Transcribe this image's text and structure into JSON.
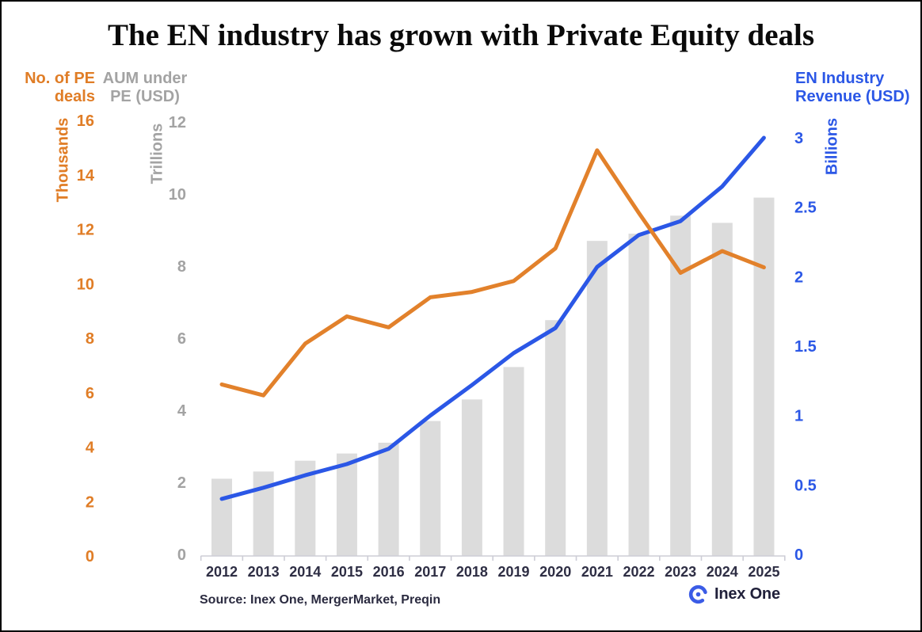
{
  "title": "The EN industry has grown with Private Equity deals",
  "source_note": "Source: Inex One, MergerMarket, Preqin",
  "logo": {
    "text": "Inex One",
    "icon": "inex-one-ring-logo",
    "color": "#3B5CE6"
  },
  "chart_data": {
    "type": "combo",
    "subtype": "bar+line, dual left axes and right axis",
    "x": [
      2012,
      2013,
      2014,
      2015,
      2016,
      2017,
      2018,
      2019,
      2020,
      2021,
      2022,
      2023,
      2024,
      2025
    ],
    "grid": false,
    "legend_position": "axis headers top-left and top-right",
    "axes": {
      "pe_deals": {
        "header": [
          "No. of PE",
          "deals"
        ],
        "unit": "Thousands",
        "side": "left-outer",
        "ticks": [
          0,
          2,
          4,
          6,
          8,
          10,
          12,
          14,
          16
        ],
        "ylim": [
          0,
          16
        ],
        "color": "#E07D26"
      },
      "aum": {
        "header": [
          "AUM under",
          "PE (USD)"
        ],
        "unit": "Trillions",
        "side": "left-inner",
        "ticks": [
          0,
          2,
          4,
          6,
          8,
          10,
          12
        ],
        "ylim": [
          0,
          12
        ],
        "color": "#A3A3A3"
      },
      "revenue": {
        "header": [
          "EN Industry",
          "Revenue (USD)"
        ],
        "unit": "Billions",
        "side": "right",
        "ticks": [
          0,
          0.5,
          1,
          1.5,
          2,
          2.5,
          3
        ],
        "ylim": [
          0,
          3
        ],
        "color": "#2B57E6"
      }
    },
    "series": [
      {
        "name": "AUM under PE (USD)",
        "type": "bar",
        "axis": "aum",
        "color": "#DCDCDC",
        "values": [
          2.1,
          2.3,
          2.6,
          2.8,
          3.1,
          3.7,
          4.3,
          5.2,
          6.5,
          8.7,
          8.9,
          9.4,
          9.2,
          9.9
        ]
      },
      {
        "name": "EN Industry Revenue (USD)",
        "type": "line",
        "axis": "revenue",
        "color": "#2B57E6",
        "values": [
          0.4,
          0.48,
          0.57,
          0.65,
          0.76,
          1.0,
          1.22,
          1.45,
          1.63,
          2.07,
          2.3,
          2.4,
          2.65,
          3.0
        ]
      },
      {
        "name": "No. of PE deals",
        "type": "line",
        "axis": "pe_deals",
        "color": "#E2812B",
        "values": [
          6.3,
          5.9,
          7.8,
          8.8,
          8.4,
          9.5,
          9.7,
          10.1,
          11.3,
          14.9,
          12.6,
          10.4,
          11.2,
          10.6
        ]
      }
    ]
  }
}
